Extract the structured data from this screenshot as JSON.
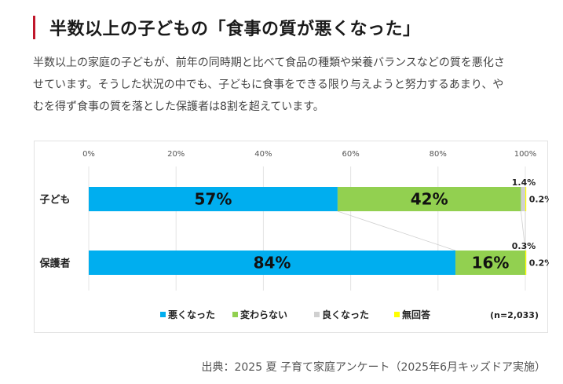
{
  "header": {
    "title": "半数以上の子どもの「食事の質が悪くなった」",
    "accent_color": "#c0172b"
  },
  "description": {
    "lines": [
      "半数以上の家庭の子どもが、前年の同時期と比べて食品の種類や栄養バランスなどの質を悪化さ",
      "せています。そうした状況の中でも、子どもに食事をできる限り与えようと努力するあまり、や",
      "むを得ず食事の質を落とした保護者は8割を超えています。"
    ]
  },
  "chart_data": {
    "type": "bar",
    "orientation": "horizontal",
    "stacked": true,
    "percent": true,
    "title": "",
    "xlabel": "",
    "ylabel": "",
    "xlim": [
      0,
      100
    ],
    "x_ticks": [
      "0%",
      "20%",
      "40%",
      "60%",
      "80%",
      "100%"
    ],
    "x_tick_values": [
      0,
      20,
      40,
      60,
      80,
      100
    ],
    "grid": true,
    "categories": [
      "子ども",
      "保護者"
    ],
    "series": [
      {
        "name": "悪くなった",
        "color": "#00aeef",
        "values": [
          57,
          84
        ],
        "labels": [
          "57%",
          "84%"
        ]
      },
      {
        "name": "変わらない",
        "color": "#92d050",
        "values": [
          42,
          16
        ],
        "labels": [
          "42%",
          "16%"
        ]
      },
      {
        "name": "良くなった",
        "color": "#d0d0d0",
        "values": [
          1.4,
          0.3
        ],
        "labels": [
          "1.4%",
          "0.3%"
        ]
      },
      {
        "name": "無回答",
        "color": "#ffff00",
        "values": [
          0.2,
          0.2
        ],
        "labels": [
          "0.2%",
          "0.2%"
        ]
      }
    ],
    "legend": {
      "placement": "bottom"
    },
    "annotation": "(n=2,033)",
    "series_lines": true
  },
  "source": "出典：2025 夏 子育て家庭アンケート（2025年6月キッズドア実施）"
}
